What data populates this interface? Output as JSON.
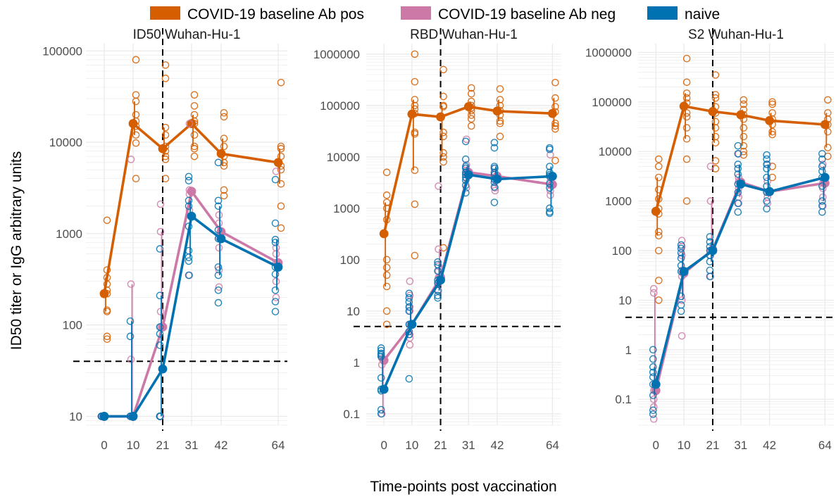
{
  "colors": {
    "pos": "#D55E00",
    "neg": "#CC79A7",
    "naive": "#0072B2",
    "grid": "#EBEBEB"
  },
  "chart_data": {
    "type": "line",
    "xlabel": "Time-points post vaccination",
    "ylabel": "ID50 titer or IgG arbitrary units",
    "xscale": "ordinal",
    "yscale": "log",
    "legend": {
      "position": "top",
      "entries": [
        {
          "key": "pos",
          "label": "COVID-19 baseline Ab pos"
        },
        {
          "key": "neg",
          "label": "COVID-19 baseline Ab neg"
        },
        {
          "key": "naive",
          "label": "naive"
        }
      ]
    },
    "x_ticks": [
      0,
      10,
      21,
      31,
      42,
      64
    ],
    "panels": [
      {
        "title": "ID50 Wuhan-Hu-1",
        "ylim": [
          8,
          120000
        ],
        "y_ticks": [
          10,
          100,
          1000,
          10000,
          100000
        ],
        "y_tick_labels": [
          "10",
          "100",
          "1000",
          "10000",
          "100000"
        ],
        "vline_x": 21,
        "hline_y": 40,
        "series": [
          {
            "key": "pos",
            "medians": [
              220,
              16000,
              8500,
              16000,
              7500,
              6000
            ],
            "points": [
              [
                400,
                330,
                280,
                240,
                220,
                145,
                140,
                75,
                70,
                1400
              ],
              [
                80000,
                33000,
                28000,
                20000,
                17000,
                15000,
                12000,
                9800,
                4000
              ],
              [
                70000,
                50000,
                14500,
                12000,
                9000,
                8000,
                7000,
                6500,
                4000
              ],
              [
                33000,
                25000,
                20000,
                16000,
                12000,
                9000,
                8500,
                7000,
                17000
              ],
              [
                21000,
                19000,
                11000,
                9000,
                7000,
                6000,
                5500,
                3000,
                2600
              ],
              [
                45000,
                9000,
                8500,
                7000,
                5500,
                5000,
                3500,
                2000,
                1150
              ]
            ]
          },
          {
            "key": "neg",
            "medians": [
              10,
              10,
              95,
              2900,
              1050,
              480
            ],
            "points": [
              [
                10,
                10
              ],
              [
                280,
                10,
                10,
                42,
                6500
              ],
              [
                2100,
                1050,
                140,
                95,
                10
              ],
              [
                3000,
                2700,
                1800,
                350,
                16000
              ],
              [
                1600,
                1300,
                900,
                700,
                400,
                260
              ],
              [
                700,
                600,
                480,
                300,
                200,
                4800
              ]
            ]
          },
          {
            "key": "naive",
            "medians": [
              10,
              10,
              33,
              1550,
              880,
              430
            ],
            "points": [
              [
                10,
                10,
                10
              ],
              [
                110,
                75,
                10,
                10
              ],
              [
                680,
                210,
                95,
                80,
                60,
                10,
                10,
                10
              ],
              [
                4200,
                3800,
                2300,
                2000,
                1200,
                650,
                550,
                500,
                350
              ],
              [
                6000,
                2300,
                2000,
                1100,
                880,
                430,
                350,
                240,
                175
              ],
              [
                3900,
                1300,
                860,
                800,
                430,
                360,
                240,
                180,
                140
              ]
            ]
          }
        ]
      },
      {
        "title": "RBD Wuhan-Hu-1",
        "ylim": [
          0.06,
          1600000
        ],
        "y_ticks": [
          0.1,
          1,
          10,
          100,
          1000,
          10000,
          100000,
          1000000
        ],
        "y_tick_labels": [
          "0.1",
          "1",
          "10",
          "100",
          "1000",
          "10000",
          "100000",
          "1000000"
        ],
        "vline_x": 21,
        "hline_y": 5,
        "series": [
          {
            "key": "pos",
            "medians": [
              320,
              68000,
              60000,
              95000,
              78000,
              70000
            ],
            "points": [
              [
                5000,
                1800,
                1300,
                1000,
                600,
                100,
                70,
                50,
                30,
                10,
                5.5
              ],
              [
                1000000,
                290000,
                130000,
                100000,
                85000,
                70000,
                30000,
                28000,
                5500,
                1200,
                120
              ],
              [
                500000,
                150000,
                100000,
                95000,
                30000,
                25000,
                12000,
                10000,
                8000,
                170
              ],
              [
                220000,
                170000,
                120000,
                100000,
                90000,
                80000,
                65000,
                55000,
                40000
              ],
              [
                210000,
                130000,
                100000,
                80000,
                65000,
                50000,
                45000,
                25000
              ],
              [
                280000,
                140000,
                95000,
                75000,
                45000,
                40000,
                35000,
                8500
              ]
            ]
          },
          {
            "key": "neg",
            "medians": [
              1.1,
              5.5,
              45,
              5000,
              4200,
              2900
            ],
            "points": [
              [
                1.2,
                0.9,
                0.1
              ],
              [
                38,
                20,
                12,
                10,
                5.5,
                3.5,
                3,
                2.2
              ],
              [
                2700,
                160,
                75,
                60,
                45,
                35,
                25
              ],
              [
                22000,
                7000,
                5500,
                5000,
                3800,
                2500
              ],
              [
                6000,
                4800,
                4000,
                3500,
                2500,
                2200
              ],
              [
                11000,
                4000,
                3300,
                2800,
                2200,
                1800
              ]
            ]
          },
          {
            "key": "naive",
            "medians": [
              0.3,
              5.5,
              40,
              4500,
              3700,
              4200
            ],
            "points": [
              [
                1.9,
                1.7,
                1.5,
                1.4,
                1.3,
                0.5,
                0.3,
                0.28,
                0.12,
                0.1
              ],
              [
                22,
                18,
                15,
                12,
                10,
                5.5,
                4,
                3.5,
                0.48
              ],
              [
                90,
                80,
                60,
                40,
                35,
                25,
                20,
                18
              ],
              [
                20000,
                9000,
                6500,
                6000,
                5000,
                4500,
                4000,
                3500,
                2800,
                2000
              ],
              [
                19000,
                15000,
                6500,
                6000,
                5000,
                4500,
                3700,
                3200,
                2600,
                1300
              ],
              [
                15000,
                14000,
                6500,
                5000,
                4500,
                4200,
                3000,
                2500,
                1000,
                850,
                800
              ]
            ]
          }
        ]
      },
      {
        "title": "S2 Wuhan-Hu-1",
        "ylim": [
          0.03,
          1500000
        ],
        "y_ticks": [
          0.1,
          1,
          10,
          100,
          1000,
          10000,
          100000,
          1000000
        ],
        "y_tick_labels": [
          "0.1",
          "1",
          "10",
          "100",
          "1000",
          "10000",
          "100000",
          "1000000"
        ],
        "vline_x": 21,
        "hline_y": 4.5,
        "series": [
          {
            "key": "pos",
            "medians": [
              620,
              82000,
              64000,
              55000,
              42000,
              35000
            ],
            "points": [
              [
                7000,
                5000,
                3000,
                1700,
                1100,
                700,
                550,
                240,
                200,
                100,
                25,
                10
              ],
              [
                750000,
                250000,
                150000,
                120000,
                95000,
                60000,
                50000,
                30000,
                18000,
                7000,
                1000
              ],
              [
                350000,
                140000,
                120000,
                80000,
                60000,
                40000,
                30000,
                20000,
                15000,
                6500,
                4500
              ],
              [
                110000,
                90000,
                70000,
                55000,
                45000,
                30000,
                20000,
                13000,
                10000,
                8500
              ],
              [
                100000,
                90000,
                60000,
                45000,
                35000,
                25000,
                22000,
                5000,
                3000
              ],
              [
                110000,
                60000,
                45000,
                35000,
                25000,
                12000,
                8000
              ]
            ]
          },
          {
            "key": "neg",
            "medians": [
              0.15,
              35,
              105,
              2400,
              1550,
              2300
            ],
            "points": [
              [
                17,
                14,
                0.15,
                0.1,
                0.07,
                0.04
              ],
              [
                160,
                120,
                80,
                40,
                30,
                10,
                1.9
              ],
              [
                5000,
                1000,
                100,
                80,
                30
              ],
              [
                9000,
                3000,
                2500,
                1800,
                1200,
                900
              ],
              [
                5500,
                2500,
                1500,
                1200,
                900
              ],
              [
                5500,
                2300,
                1800,
                1200,
                800
              ]
            ]
          },
          {
            "key": "naive",
            "medians": [
              0.2,
              38,
              100,
              2200,
              1550,
              3000
            ],
            "points": [
              [
                1,
                0.65,
                0.45,
                0.35,
                0.28,
                0.2,
                0.12,
                0.06,
                0.05
              ],
              [
                130,
                110,
                90,
                70,
                50,
                38,
                12,
                8,
                6
              ],
              [
                190,
                150,
                120,
                100,
                80,
                60,
                40,
                30
              ],
              [
                13000,
                9000,
                5500,
                4500,
                3500,
                2200,
                1500,
                900,
                600
              ],
              [
                8500,
                7000,
                5500,
                4500,
                3000,
                2000,
                1500,
                1000,
                700
              ],
              [
                9000,
                7000,
                5000,
                4000,
                3000,
                2000,
                1000,
                800,
                600
              ]
            ]
          }
        ]
      }
    ]
  }
}
